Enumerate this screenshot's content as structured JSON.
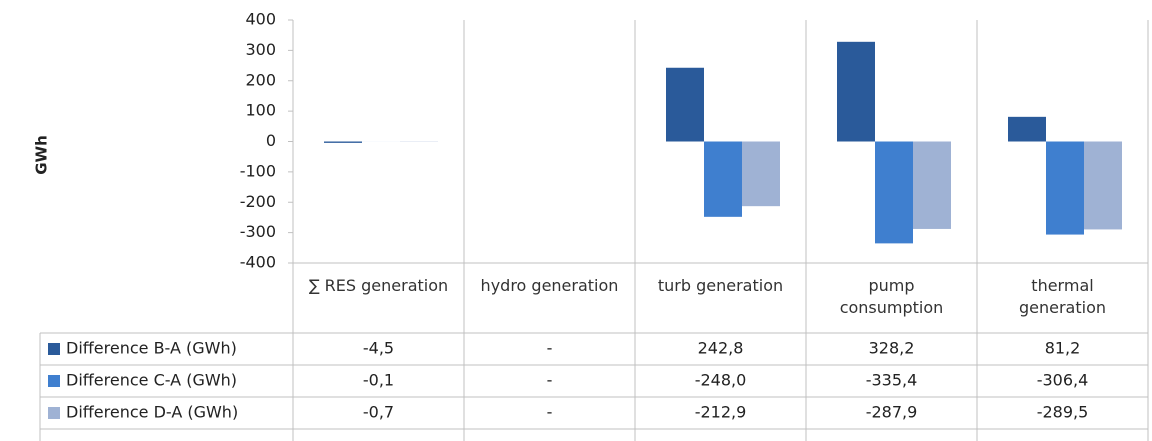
{
  "chart_data": {
    "type": "bar",
    "y_axis_label": "GWh",
    "categories": [
      "∑ RES generation",
      "hydro generation",
      "turb generation",
      "pump consumption",
      "thermal generation"
    ],
    "series": [
      {
        "name": "Difference B-A (GWh)",
        "color": "#2a5a9a",
        "values": [
          -4.5,
          null,
          242.8,
          328.2,
          81.2
        ],
        "value_labels": [
          "-4,5",
          "-",
          "242,8",
          "328,2",
          "81,2"
        ]
      },
      {
        "name": "Difference C-A (GWh)",
        "color": "#3f7fcf",
        "values": [
          -0.1,
          null,
          -248.0,
          -335.4,
          -306.4
        ],
        "value_labels": [
          "-0,1",
          "-",
          "-248,0",
          "-335,4",
          "-306,4"
        ]
      },
      {
        "name": "Difference D-A (GWh)",
        "color": "#9fb2d4",
        "values": [
          -0.7,
          null,
          -212.9,
          -287.9,
          -289.5
        ],
        "value_labels": [
          "-0,7",
          "-",
          "-212,9",
          "-287,9",
          "-289,5"
        ]
      }
    ],
    "ylim": [
      -400,
      400
    ],
    "yticks": [
      -400,
      -300,
      -200,
      -100,
      0,
      100,
      200,
      300,
      400
    ],
    "grid": false
  }
}
